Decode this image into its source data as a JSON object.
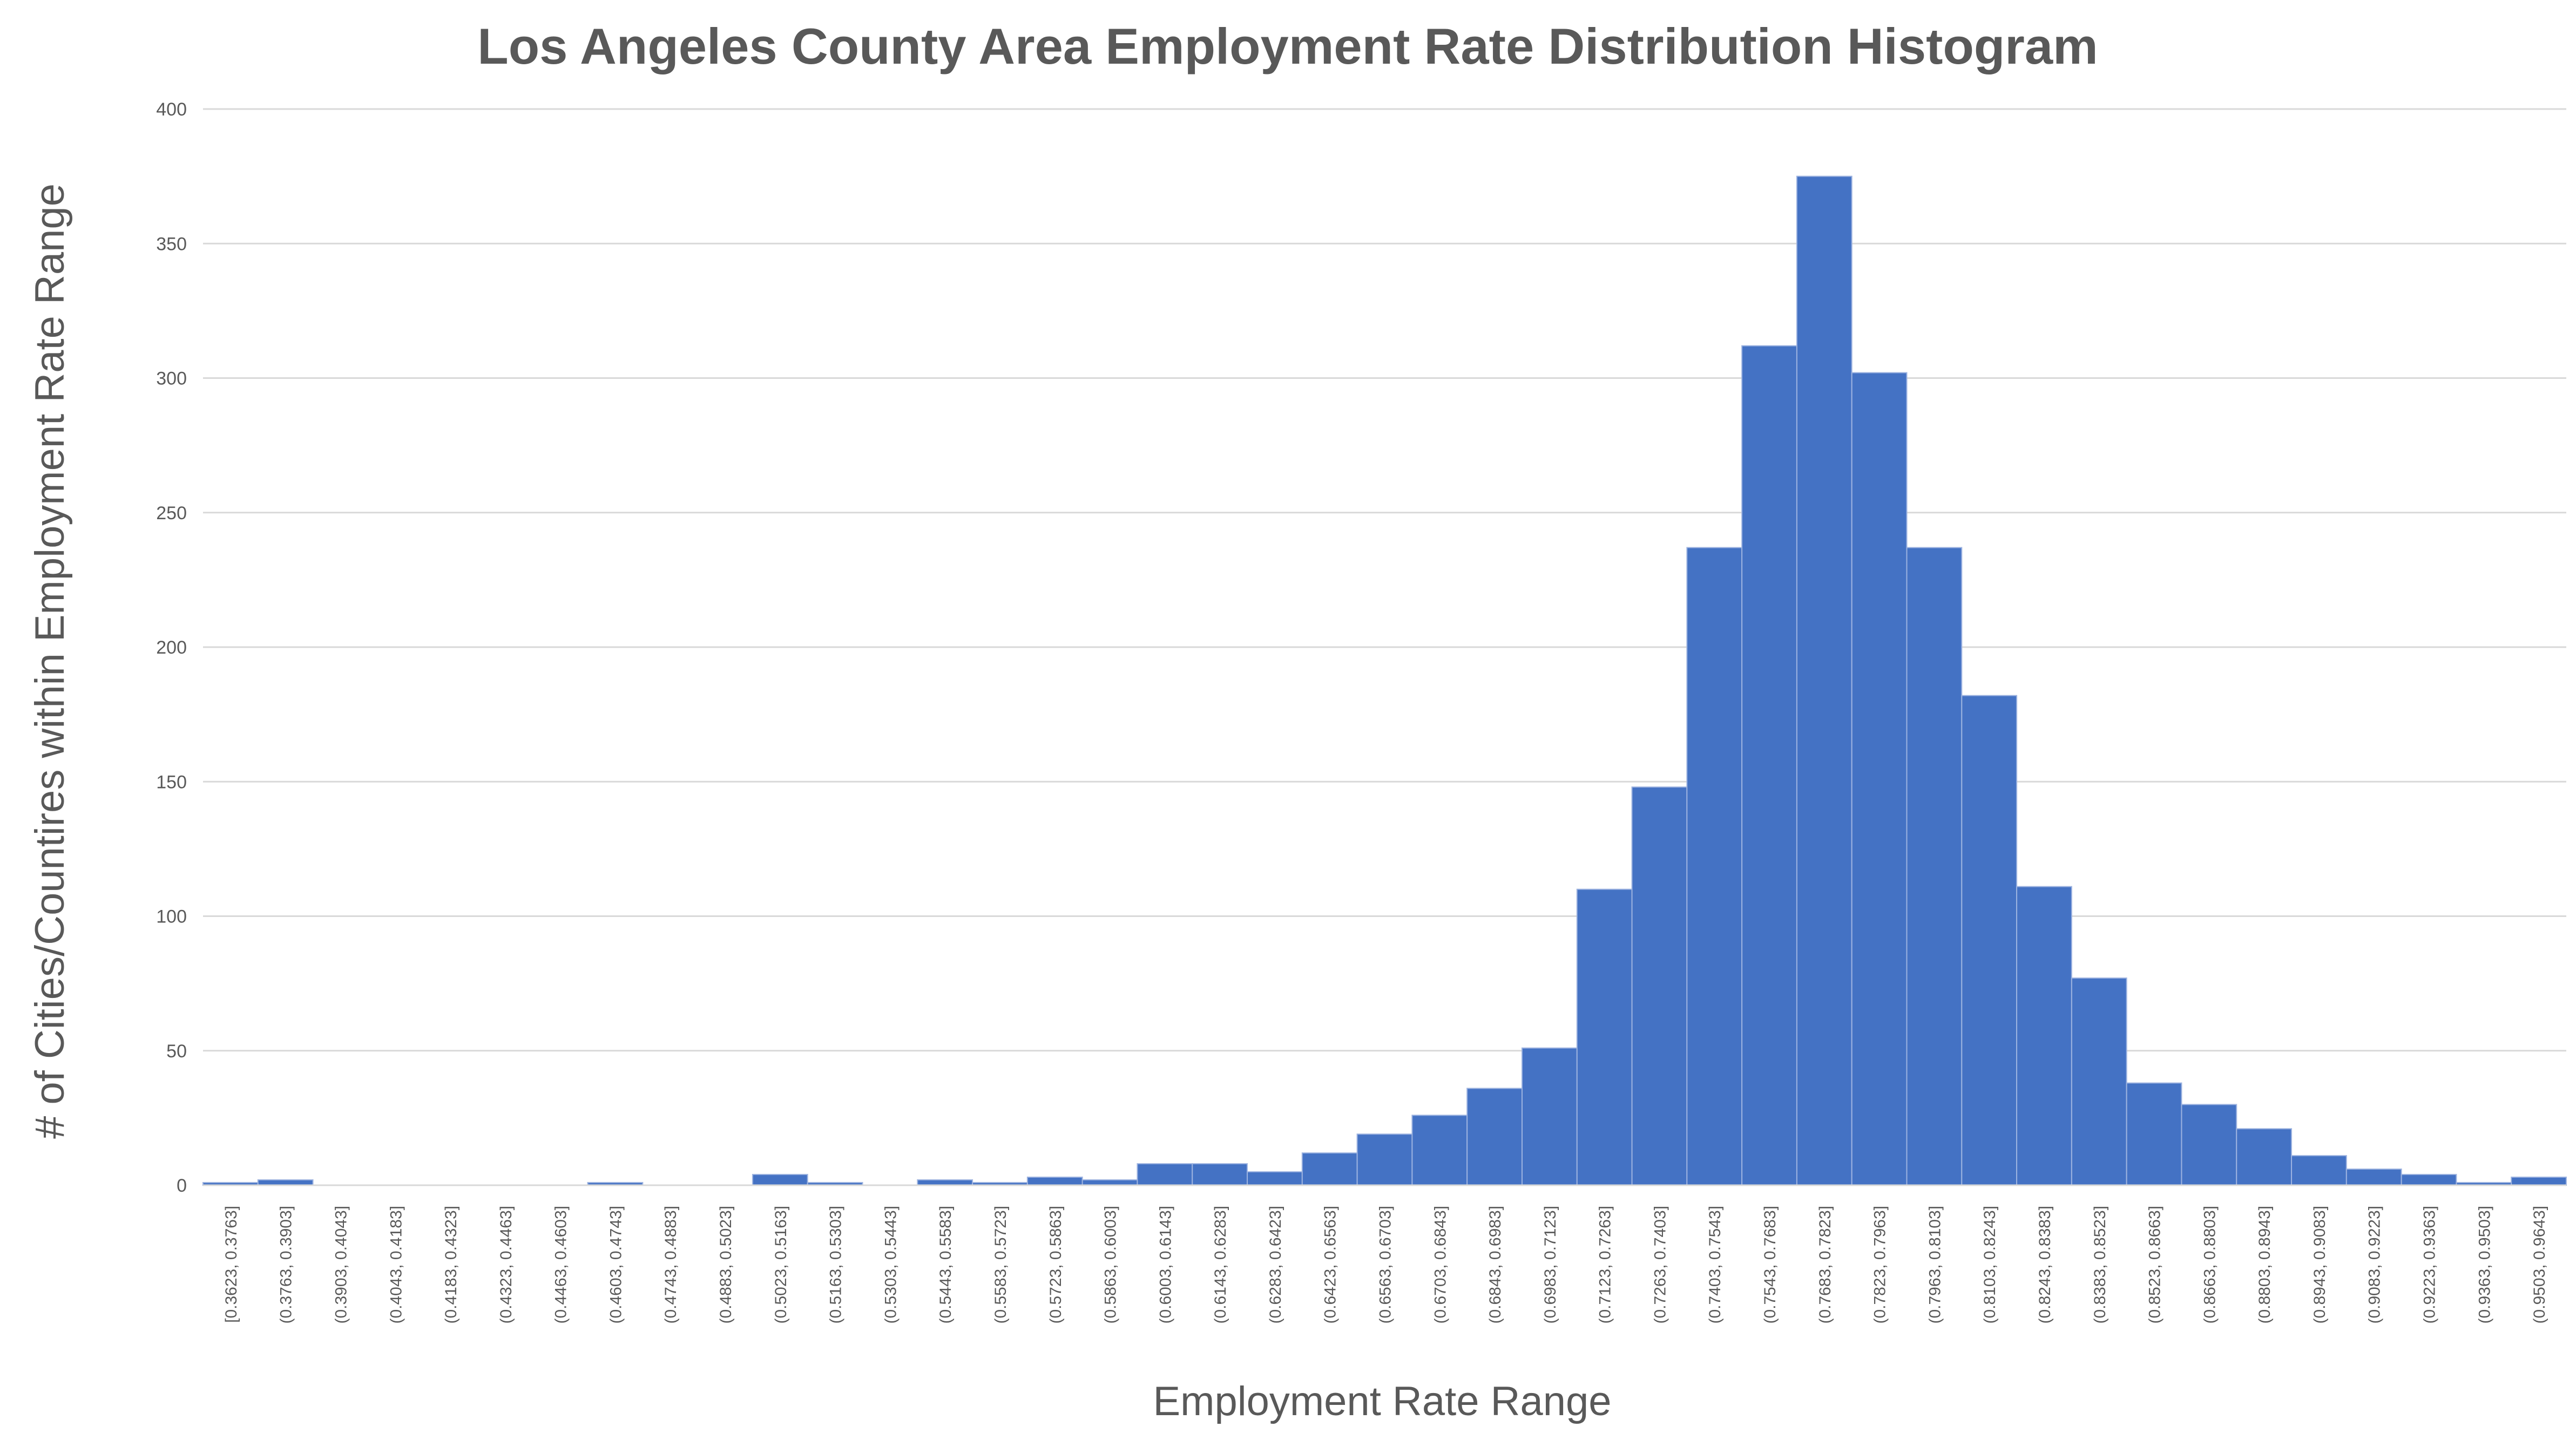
{
  "chart_data": {
    "type": "bar",
    "title": "Los Angeles County Area Employment Rate Distribution Histogram",
    "xlabel": "Employment Rate Range",
    "ylabel": "# of  Cities/Countires within Employment Rate Range",
    "ylim": [
      0,
      400
    ],
    "yticks": [
      "0",
      "50",
      "100",
      "150",
      "200",
      "250",
      "300",
      "350",
      "400"
    ],
    "grid": true,
    "legend": "none",
    "colors": {
      "bar": "#4472C4",
      "bar_edge": "#9DB3E0",
      "grid": "#D9D9D9",
      "text": "#595959"
    },
    "categories": [
      "[0.3623, 0.3763]",
      "(0.3763, 0.3903]",
      "(0.3903, 0.4043]",
      "(0.4043, 0.4183]",
      "(0.4183, 0.4323]",
      "(0.4323, 0.4463]",
      "(0.4463, 0.4603]",
      "(0.4603, 0.4743]",
      "(0.4743, 0.4883]",
      "(0.4883, 0.5023]",
      "(0.5023, 0.5163]",
      "(0.5163, 0.5303]",
      "(0.5303, 0.5443]",
      "(0.5443, 0.5583]",
      "(0.5583, 0.5723]",
      "(0.5723, 0.5863]",
      "(0.5863, 0.6003]",
      "(0.6003, 0.6143]",
      "(0.6143, 0.6283]",
      "(0.6283, 0.6423]",
      "(0.6423, 0.6563]",
      "(0.6563, 0.6703]",
      "(0.6703, 0.6843]",
      "(0.6843, 0.6983]",
      "(0.6983, 0.7123]",
      "(0.7123, 0.7263]",
      "(0.7263, 0.7403]",
      "(0.7403, 0.7543]",
      "(0.7543, 0.7683]",
      "(0.7683, 0.7823]",
      "(0.7823, 0.7963]",
      "(0.7963, 0.8103]",
      "(0.8103, 0.8243]",
      "(0.8243, 0.8383]",
      "(0.8383, 0.8523]",
      "(0.8523, 0.8663]",
      "(0.8663, 0.8803]",
      "(0.8803, 0.8943]",
      "(0.8943, 0.9083]",
      "(0.9083, 0.9223]",
      "(0.9223, 0.9363]",
      "(0.9363, 0.9503]",
      "(0.9503, 0.9643]"
    ],
    "values": [
      1,
      2,
      0,
      0,
      0,
      0,
      0,
      1,
      0,
      0,
      4,
      1,
      0,
      2,
      1,
      3,
      2,
      8,
      8,
      5,
      12,
      19,
      26,
      36,
      51,
      110,
      148,
      237,
      312,
      375,
      302,
      237,
      182,
      111,
      77,
      38,
      30,
      21,
      11,
      6,
      4,
      1,
      3
    ]
  }
}
